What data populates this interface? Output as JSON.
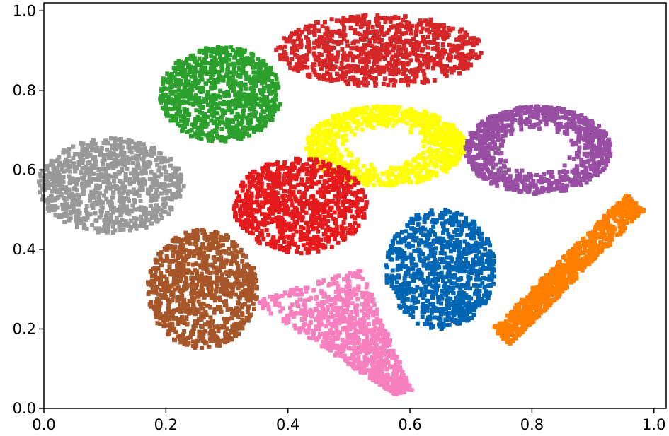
{
  "chart_data": {
    "type": "scatter",
    "title": "",
    "xlabel": "",
    "ylabel": "",
    "xlim": [
      0.0,
      1.02
    ],
    "ylim": [
      0.0,
      1.02
    ],
    "grid": false,
    "legend": "none",
    "marker": "star",
    "x_ticks": [
      "0.0",
      "0.2",
      "0.4",
      "0.6",
      "0.8",
      "1.0"
    ],
    "y_ticks": [
      "0.0",
      "0.2",
      "0.4",
      "0.6",
      "0.8",
      "1.0"
    ],
    "clusters": [
      {
        "color": "#d62728",
        "center": [
          0.55,
          0.9
        ],
        "radius": [
          0.17,
          0.09
        ],
        "shape": "blob"
      },
      {
        "color": "#2ca02c",
        "center": [
          0.29,
          0.79
        ],
        "radius": [
          0.1,
          0.12
        ],
        "shape": "blob"
      },
      {
        "color": "#ffff00",
        "center": [
          0.56,
          0.66
        ],
        "radius": [
          0.13,
          0.1
        ],
        "shape": "ring"
      },
      {
        "color": "#984ea3",
        "center": [
          0.81,
          0.65
        ],
        "radius": [
          0.12,
          0.11
        ],
        "shape": "ring"
      },
      {
        "color": "#999999",
        "center": [
          0.11,
          0.56
        ],
        "radius": [
          0.12,
          0.12
        ],
        "shape": "blob"
      },
      {
        "color": "#e41a1c",
        "center": [
          0.42,
          0.51
        ],
        "radius": [
          0.11,
          0.12
        ],
        "shape": "blob"
      },
      {
        "color": "#0066b3",
        "center": [
          0.65,
          0.35
        ],
        "radius": [
          0.09,
          0.15
        ],
        "shape": "blob"
      },
      {
        "color": "#ff7f00",
        "center": [
          0.86,
          0.35
        ],
        "radius": [
          0.11,
          0.17
        ],
        "shape": "tilted"
      },
      {
        "color": "#a65628",
        "center": [
          0.26,
          0.3
        ],
        "radius": [
          0.09,
          0.15
        ],
        "shape": "blob"
      },
      {
        "color": "#f781bf",
        "center": [
          0.47,
          0.19
        ],
        "radius": [
          0.11,
          0.14
        ],
        "shape": "teardrop"
      }
    ]
  }
}
